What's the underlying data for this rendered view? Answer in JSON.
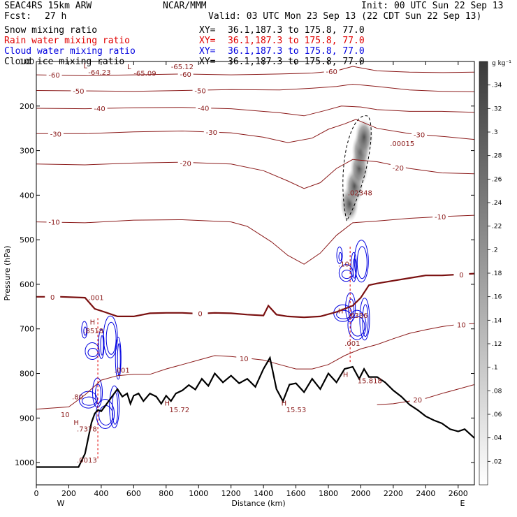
{
  "header": {
    "model": "SEAC4RS 15km ARW",
    "org": "NCAR/MMM",
    "init": "Init: 00 UTC Sun 22 Sep 13",
    "fcst_label": "Fcst:",
    "fcst_value": "27 h",
    "valid": "Valid: 03 UTC Mon 23 Sep 13 (22 CDT Sun 22 Sep 13)",
    "fields": [
      {
        "name": "Snow mixing ratio",
        "color": "#000000"
      },
      {
        "name": "Rain water mixing ratio",
        "color": "#e00000"
      },
      {
        "name": "Cloud water mixing ratio",
        "color": "#0000e0"
      },
      {
        "name": "Cloud ice mixing ratio",
        "color": "#000000"
      }
    ],
    "xy_prefix": "XY=",
    "xy_value": "36.1,187.3 to 175.8, 77.0"
  },
  "colors": {
    "temperature": "#8b1a1a",
    "zero_isotherm": "#7a1010",
    "terrain": "#000000",
    "cloud_water": "#0000e0",
    "rain": "#e00000",
    "snow": "#000000"
  },
  "chart_data": {
    "type": "cross-section",
    "xlabel": "Distance (km)",
    "ylabel": "Pressure (hPa)",
    "xlim": [
      0,
      2700
    ],
    "ylim": [
      1050,
      100
    ],
    "x_ticks": [
      0,
      200,
      400,
      600,
      800,
      1000,
      1200,
      1400,
      1600,
      1800,
      2000,
      2200,
      2400,
      2600
    ],
    "y_ticks": [
      100,
      200,
      300,
      400,
      500,
      600,
      700,
      800,
      900,
      1000
    ],
    "y_tick_labels": [
      "100",
      "200",
      "300",
      "400",
      "500",
      "600",
      "700",
      "800",
      "900",
      "1000"
    ],
    "endpoints": {
      "left": "W",
      "right": "E"
    },
    "colorbar": {
      "unit": "g kg⁻¹",
      "min": 0,
      "max": 0.36,
      "ticks": [
        ".02",
        ".04",
        ".06",
        ".08",
        ".1",
        ".12",
        ".14",
        ".16",
        ".18",
        ".2",
        ".22",
        ".24",
        ".26",
        ".28",
        ".3",
        ".32",
        ".34"
      ]
    },
    "terrain": {
      "x": [
        0,
        260,
        300,
        320,
        340,
        360,
        380,
        400,
        430,
        460,
        500,
        530,
        560,
        580,
        600,
        630,
        660,
        700,
        740,
        770,
        800,
        830,
        860,
        900,
        940,
        980,
        1020,
        1060,
        1100,
        1150,
        1200,
        1250,
        1300,
        1350,
        1400,
        1440,
        1480,
        1520,
        1560,
        1600,
        1650,
        1700,
        1750,
        1800,
        1850,
        1900,
        1950,
        1990,
        2020,
        2050,
        2100,
        2150,
        2200,
        2250,
        2300,
        2350,
        2400,
        2450,
        2500,
        2550,
        2600,
        2640,
        2700
      ],
      "p": [
        1010,
        1010,
        980,
        945,
        910,
        890,
        882,
        885,
        870,
        855,
        835,
        852,
        845,
        868,
        850,
        845,
        862,
        845,
        852,
        868,
        850,
        862,
        845,
        838,
        826,
        836,
        812,
        828,
        800,
        820,
        805,
        822,
        812,
        830,
        790,
        765,
        835,
        862,
        825,
        822,
        842,
        812,
        835,
        800,
        820,
        790,
        785,
        812,
        790,
        808,
        808,
        820,
        838,
        852,
        870,
        882,
        896,
        905,
        912,
        925,
        930,
        925,
        945
      ]
    },
    "isotherms": [
      {
        "label": "-60",
        "x": [
          0,
          300,
          600,
          900,
          1200,
          1500,
          1700,
          1850,
          1950,
          2100,
          2300,
          2500,
          2700
        ],
        "p": [
          130,
          132,
          130,
          128,
          130,
          128,
          126,
          121,
          111,
          121,
          124,
          125,
          124
        ],
        "labels": [
          {
            "x": 110,
            "p": 130
          },
          {
            "x": 920,
            "p": 128
          },
          {
            "x": 1820,
            "p": 122
          }
        ]
      },
      {
        "label": "-50",
        "x": [
          0,
          300,
          600,
          900,
          1200,
          1500,
          1700,
          1850,
          1950,
          2100,
          2300,
          2500,
          2700
        ],
        "p": [
          165,
          166,
          167,
          165,
          163,
          164,
          160,
          156,
          151,
          156,
          164,
          167,
          168
        ],
        "labels": [
          {
            "x": 260,
            "p": 166
          },
          {
            "x": 1010,
            "p": 165
          }
        ]
      },
      {
        "label": "-40",
        "x": [
          0,
          300,
          600,
          900,
          1200,
          1500,
          1650,
          1780,
          1880,
          2000,
          2100,
          2300,
          2500,
          2700
        ],
        "p": [
          205,
          206,
          204,
          203,
          206,
          215,
          222,
          210,
          200,
          202,
          208,
          212,
          212,
          214
        ],
        "labels": [
          {
            "x": 390,
            "p": 205
          },
          {
            "x": 1030,
            "p": 204
          }
        ]
      },
      {
        "label": "-30",
        "x": [
          0,
          300,
          600,
          900,
          1200,
          1400,
          1550,
          1700,
          1800,
          1900,
          1970,
          2100,
          2300,
          2500,
          2700
        ],
        "p": [
          262,
          262,
          258,
          256,
          260,
          270,
          282,
          272,
          252,
          240,
          230,
          250,
          262,
          268,
          275
        ],
        "labels": [
          {
            "x": 120,
            "p": 262
          },
          {
            "x": 1080,
            "p": 258
          },
          {
            "x": 2360,
            "p": 264
          }
        ]
      },
      {
        "label": "-20",
        "x": [
          0,
          300,
          600,
          900,
          1200,
          1400,
          1550,
          1650,
          1750,
          1850,
          1950,
          2100,
          2300,
          2500,
          2700
        ],
        "p": [
          330,
          332,
          328,
          326,
          330,
          345,
          368,
          385,
          372,
          340,
          320,
          325,
          340,
          350,
          352
        ],
        "labels": [
          {
            "x": 920,
            "p": 328
          },
          {
            "x": 2230,
            "p": 338
          }
        ]
      },
      {
        "label": "-10",
        "x": [
          0,
          300,
          600,
          900,
          1200,
          1300,
          1450,
          1550,
          1650,
          1750,
          1850,
          1950,
          2100,
          2300,
          2500,
          2700
        ],
        "p": [
          460,
          462,
          456,
          455,
          460,
          470,
          505,
          535,
          555,
          530,
          490,
          462,
          458,
          452,
          448,
          445
        ],
        "labels": [
          {
            "x": 110,
            "p": 460
          },
          {
            "x": 2490,
            "p": 448
          }
        ]
      },
      {
        "label": "0",
        "x": [
          0,
          150,
          300,
          360,
          420,
          500,
          600,
          700,
          800,
          900,
          1000,
          1100,
          1200,
          1300,
          1400,
          1430,
          1480,
          1550,
          1650,
          1750,
          1850,
          1950,
          2000,
          2050,
          2100,
          2200,
          2300,
          2400,
          2500,
          2600,
          2700
        ],
        "p": [
          628,
          628,
          630,
          655,
          662,
          672,
          672,
          665,
          664,
          664,
          666,
          664,
          665,
          668,
          670,
          648,
          668,
          672,
          674,
          672,
          662,
          648,
          630,
          602,
          598,
          592,
          586,
          580,
          580,
          578,
          576
        ],
        "labels": [
          {
            "x": 100,
            "p": 628
          },
          {
            "x": 1010,
            "p": 665
          },
          {
            "x": 2620,
            "p": 578
          }
        ]
      },
      {
        "label": "10",
        "x": [
          0,
          200,
          300,
          400,
          500,
          600,
          700,
          800,
          900,
          1000,
          1100,
          1200,
          1300,
          1400,
          1500,
          1600,
          1700,
          1800,
          1900,
          2000,
          2100,
          2200,
          2300,
          2400,
          2500,
          2600,
          2700
        ],
        "p": [
          880,
          875,
          848,
          815,
          805,
          802,
          802,
          790,
          780,
          770,
          760,
          762,
          766,
          770,
          780,
          790,
          790,
          780,
          760,
          745,
          735,
          722,
          710,
          702,
          695,
          690,
          688
        ],
        "labels": [
          {
            "x": 1280,
            "p": 766
          },
          {
            "x": 2620,
            "p": 690
          }
        ]
      },
      {
        "label": "20",
        "x": [
          2100,
          2200,
          2300,
          2400,
          2500,
          2600,
          2700
        ],
        "p": [
          870,
          868,
          862,
          856,
          845,
          835,
          825
        ],
        "labels": [
          {
            "x": 2350,
            "p": 859
          }
        ]
      }
    ],
    "snow_field": {
      "x": [
        1930,
        1960,
        1990,
        2000,
        2020
      ],
      "p": [
        420,
        380,
        340,
        300,
        270
      ],
      "max_label": ".02348",
      "max_at": {
        "x": 1920,
        "p": 400
      },
      "ice_max_label": ".00015",
      "ice_max_at": {
        "x": 2180,
        "p": 290
      }
    },
    "cloud_water_regions": [
      {
        "x_range": [
          250,
          560
        ],
        "p_range": [
          660,
          1010
        ],
        "max_label": ".8518",
        "max_at": {
          "x": 290,
          "p": 710
        }
      },
      {
        "x_range": [
          1830,
          2090
        ],
        "p_range": [
          500,
          790
        ],
        "max_label": ".6336",
        "max_at": {
          "x": 1920,
          "p": 675
        }
      }
    ],
    "annotations": [
      {
        "text": "L",
        "x": 290,
        "p": 115
      },
      {
        "text": "-64.23",
        "x": 320,
        "p": 130
      },
      {
        "text": "L",
        "x": 560,
        "p": 117
      },
      {
        "text": "-65.09",
        "x": 600,
        "p": 132
      },
      {
        "text": "-65.12",
        "x": 830,
        "p": 117
      },
      {
        "text": ".001",
        "x": 320,
        "p": 635
      },
      {
        "text": "H",
        "x": 330,
        "p": 690
      },
      {
        "text": ".001",
        "x": 480,
        "p": 798
      },
      {
        "text": ".80",
        "x": 220,
        "p": 858
      },
      {
        "text": "10",
        "x": 150,
        "p": 898
      },
      {
        "text": "H",
        "x": 230,
        "p": 915
      },
      {
        "text": ".7378",
        "x": 250,
        "p": 930
      },
      {
        "text": ".0013",
        "x": 250,
        "p": 1000
      },
      {
        "text": "H",
        "x": 790,
        "p": 872
      },
      {
        "text": "15.72",
        "x": 820,
        "p": 887
      },
      {
        "text": "H",
        "x": 1510,
        "p": 872
      },
      {
        "text": "15.53",
        "x": 1540,
        "p": 887
      },
      {
        "text": ".10",
        "x": 1860,
        "p": 560
      },
      {
        "text": "H",
        "x": 1860,
        "p": 665
      },
      {
        "text": ".001",
        "x": 1900,
        "p": 738
      },
      {
        "text": "H",
        "x": 1890,
        "p": 808
      },
      {
        "text": "15.818",
        "x": 1980,
        "p": 822
      }
    ]
  }
}
